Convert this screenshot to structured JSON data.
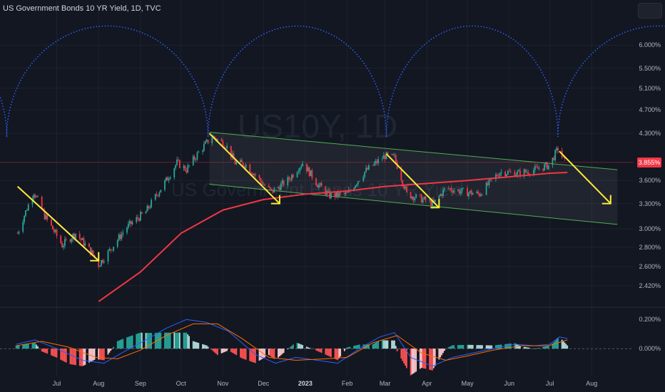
{
  "header": {
    "title": "US Government Bonds 10 YR Yield, 1D, TVC"
  },
  "watermark": {
    "symbol": "US10Y, 1D",
    "name": "US Government Bonds 10 YR Yield"
  },
  "colors": {
    "background": "#131722",
    "up": "#26a69a",
    "down": "#f23645",
    "ma": "#f23645",
    "channel": "#4caf50",
    "arrow": "#ffeb3b",
    "cycle": "#2962ff",
    "macd": "#2962ff",
    "signal": "#ff6d00"
  },
  "chart_data": {
    "type": "candlestick",
    "x_axis": {
      "labels": [
        "Jul",
        "Aug",
        "Sep",
        "Oct",
        "Nov",
        "Dec",
        "2023",
        "Feb",
        "Mar",
        "Apr",
        "May",
        "Jun",
        "Jul",
        "Aug"
      ],
      "bold": [
        "2023"
      ]
    },
    "y_axis": {
      "scale": "log",
      "labels": [
        "6.000%",
        "5.500%",
        "5.100%",
        "4.700%",
        "4.300%",
        "3.600%",
        "3.300%",
        "3.000%",
        "2.800%",
        "2.600%",
        "2.420%"
      ],
      "values": [
        6.0,
        5.5,
        5.1,
        4.7,
        4.3,
        3.6,
        3.3,
        3.0,
        2.8,
        2.6,
        2.42
      ]
    },
    "current_price": {
      "label": "3.855%",
      "value": 3.855
    },
    "price_path": [
      [
        "2022-06-02",
        2.95
      ],
      [
        "2022-06-14",
        3.45
      ],
      [
        "2022-06-22",
        3.15
      ],
      [
        "2022-07-05",
        2.82
      ],
      [
        "2022-07-15",
        2.95
      ],
      [
        "2022-07-28",
        2.72
      ],
      [
        "2022-08-01",
        2.62
      ],
      [
        "2022-08-10",
        2.78
      ],
      [
        "2022-08-22",
        3.02
      ],
      [
        "2022-09-05",
        3.2
      ],
      [
        "2022-09-20",
        3.6
      ],
      [
        "2022-09-28",
        3.85
      ],
      [
        "2022-10-05",
        3.75
      ],
      [
        "2022-10-14",
        4.0
      ],
      [
        "2022-10-24",
        4.25
      ],
      [
        "2022-11-03",
        4.12
      ],
      [
        "2022-11-10",
        3.85
      ],
      [
        "2022-11-18",
        3.82
      ],
      [
        "2022-12-01",
        3.55
      ],
      [
        "2022-12-07",
        3.45
      ],
      [
        "2022-12-19",
        3.6
      ],
      [
        "2022-12-30",
        3.85
      ],
      [
        "2023-01-10",
        3.55
      ],
      [
        "2023-01-19",
        3.4
      ],
      [
        "2023-02-01",
        3.42
      ],
      [
        "2023-02-14",
        3.72
      ],
      [
        "2023-03-01",
        3.95
      ],
      [
        "2023-03-08",
        3.92
      ],
      [
        "2023-03-17",
        3.42
      ],
      [
        "2023-03-24",
        3.38
      ],
      [
        "2023-04-06",
        3.3
      ],
      [
        "2023-04-15",
        3.5
      ],
      [
        "2023-04-28",
        3.45
      ],
      [
        "2023-05-10",
        3.42
      ],
      [
        "2023-05-25",
        3.72
      ],
      [
        "2023-06-08",
        3.7
      ],
      [
        "2023-06-20",
        3.75
      ],
      [
        "2023-07-01",
        3.82
      ],
      [
        "2023-07-07",
        4.06
      ],
      [
        "2023-07-12",
        3.86
      ]
    ],
    "moving_average": [
      [
        "2022-08-01",
        2.28
      ],
      [
        "2022-09-01",
        2.55
      ],
      [
        "2022-10-01",
        2.95
      ],
      [
        "2022-11-01",
        3.22
      ],
      [
        "2022-12-01",
        3.35
      ],
      [
        "2023-01-01",
        3.42
      ],
      [
        "2023-02-01",
        3.46
      ],
      [
        "2023-03-01",
        3.52
      ],
      [
        "2023-04-01",
        3.56
      ],
      [
        "2023-05-01",
        3.6
      ],
      [
        "2023-06-01",
        3.65
      ],
      [
        "2023-07-01",
        3.7
      ],
      [
        "2023-07-14",
        3.71
      ]
    ],
    "channel": {
      "upper": [
        [
          "2022-10-22",
          4.32
        ],
        [
          "2023-08-20",
          3.75
        ]
      ],
      "lower": [
        [
          "2022-10-22",
          3.55
        ],
        [
          "2023-08-20",
          3.05
        ]
      ]
    },
    "arrows": [
      [
        [
          "2022-06-02",
          3.52
        ],
        [
          "2022-08-01",
          2.66
        ]
      ],
      [
        [
          "2022-10-22",
          4.3
        ],
        [
          "2022-12-13",
          3.3
        ]
      ],
      [
        [
          "2023-03-02",
          3.98
        ],
        [
          "2023-04-10",
          3.25
        ]
      ],
      [
        [
          "2023-07-08",
          4.02
        ],
        [
          "2023-08-15",
          3.3
        ]
      ]
    ],
    "cycle_lows": [
      "2022-05-25",
      "2022-10-21",
      "2023-03-02",
      "2023-07-07"
    ],
    "cycle_peak": 6.45,
    "cycle_bottom": 4.25,
    "macd": {
      "axis_labels": [
        "0.200%",
        "0.000%"
      ],
      "axis_values": [
        0.2,
        0.0
      ],
      "macd_line": [
        [
          "2022-06-01",
          0.03
        ],
        [
          "2022-06-15",
          0.06
        ],
        [
          "2022-07-01",
          0.0
        ],
        [
          "2022-07-20",
          -0.08
        ],
        [
          "2022-08-05",
          -0.1
        ],
        [
          "2022-08-20",
          -0.02
        ],
        [
          "2022-09-05",
          0.06
        ],
        [
          "2022-09-20",
          0.14
        ],
        [
          "2022-10-05",
          0.2
        ],
        [
          "2022-10-20",
          0.18
        ],
        [
          "2022-11-05",
          0.12
        ],
        [
          "2022-11-25",
          -0.04
        ],
        [
          "2022-12-10",
          -0.1
        ],
        [
          "2022-12-25",
          -0.06
        ],
        [
          "2023-01-10",
          -0.08
        ],
        [
          "2023-01-25",
          -0.1
        ],
        [
          "2023-02-10",
          0.0
        ],
        [
          "2023-02-25",
          0.08
        ],
        [
          "2023-03-08",
          0.11
        ],
        [
          "2023-03-20",
          -0.06
        ],
        [
          "2023-04-05",
          -0.12
        ],
        [
          "2023-04-20",
          -0.06
        ],
        [
          "2023-05-05",
          -0.03
        ],
        [
          "2023-05-20",
          0.0
        ],
        [
          "2023-06-05",
          0.03
        ],
        [
          "2023-06-20",
          0.02
        ],
        [
          "2023-07-01",
          0.03
        ],
        [
          "2023-07-08",
          0.08
        ],
        [
          "2023-07-14",
          0.07
        ]
      ],
      "signal_line": [
        [
          "2022-06-01",
          0.02
        ],
        [
          "2022-06-20",
          0.05
        ],
        [
          "2022-07-10",
          0.01
        ],
        [
          "2022-07-30",
          -0.06
        ],
        [
          "2022-08-15",
          -0.07
        ],
        [
          "2022-09-01",
          -0.01
        ],
        [
          "2022-09-20",
          0.09
        ],
        [
          "2022-10-10",
          0.17
        ],
        [
          "2022-10-28",
          0.17
        ],
        [
          "2022-11-15",
          0.07
        ],
        [
          "2022-12-05",
          -0.06
        ],
        [
          "2022-12-25",
          -0.08
        ],
        [
          "2023-01-15",
          -0.07
        ],
        [
          "2023-02-01",
          -0.06
        ],
        [
          "2023-02-20",
          0.04
        ],
        [
          "2023-03-10",
          0.09
        ],
        [
          "2023-03-28",
          -0.03
        ],
        [
          "2023-04-15",
          -0.08
        ],
        [
          "2023-05-01",
          -0.05
        ],
        [
          "2023-05-20",
          -0.01
        ],
        [
          "2023-06-10",
          0.02
        ],
        [
          "2023-06-30",
          0.02
        ],
        [
          "2023-07-14",
          0.06
        ]
      ]
    }
  }
}
